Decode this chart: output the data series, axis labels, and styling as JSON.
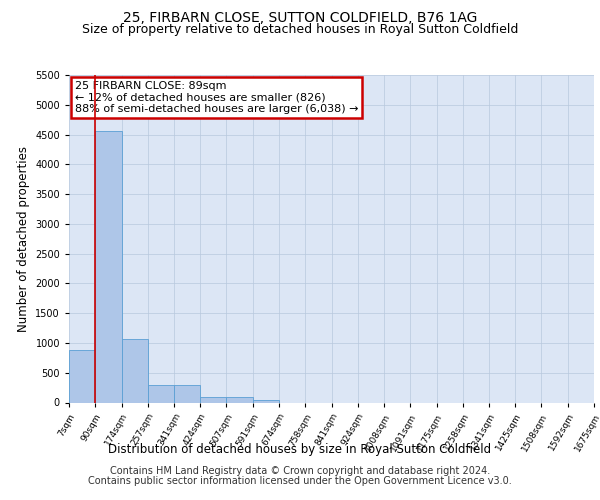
{
  "title": "25, FIRBARN CLOSE, SUTTON COLDFIELD, B76 1AG",
  "subtitle": "Size of property relative to detached houses in Royal Sutton Coldfield",
  "xlabel": "Distribution of detached houses by size in Royal Sutton Coldfield",
  "ylabel": "Number of detached properties",
  "footer_line1": "Contains HM Land Registry data © Crown copyright and database right 2024.",
  "footer_line2": "Contains public sector information licensed under the Open Government Licence v3.0.",
  "annotation_title": "25 FIRBARN CLOSE: 89sqm",
  "annotation_line2": "← 12% of detached houses are smaller (826)",
  "annotation_line3": "88% of semi-detached houses are larger (6,038) →",
  "bar_edges": [
    7,
    90,
    174,
    257,
    341,
    424,
    507,
    591,
    674,
    758,
    841,
    924,
    1008,
    1091,
    1175,
    1258,
    1341,
    1425,
    1508,
    1592,
    1675
  ],
  "bar_heights": [
    880,
    4560,
    1060,
    290,
    290,
    95,
    95,
    50,
    0,
    0,
    0,
    0,
    0,
    0,
    0,
    0,
    0,
    0,
    0,
    0
  ],
  "bar_color": "#aec6e8",
  "bar_edge_color": "#5a9fd4",
  "vline_color": "#cc0000",
  "vline_x": 89,
  "annotation_box_color": "#cc0000",
  "background_color": "#dce6f5",
  "ylim": [
    0,
    5500
  ],
  "yticks": [
    0,
    500,
    1000,
    1500,
    2000,
    2500,
    3000,
    3500,
    4000,
    4500,
    5000,
    5500
  ],
  "title_fontsize": 10,
  "subtitle_fontsize": 9,
  "axis_label_fontsize": 8.5,
  "tick_fontsize": 7,
  "footer_fontsize": 7,
  "annotation_fontsize": 8
}
